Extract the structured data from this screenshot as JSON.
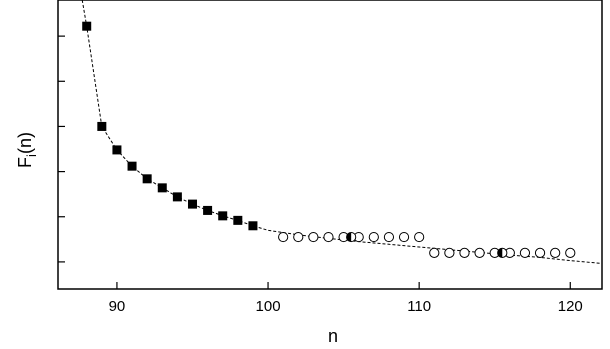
{
  "chart_data": {
    "type": "scatter",
    "title": "",
    "xlabel": "n",
    "ylabel_main": "F",
    "ylabel_sub": "i",
    "ylabel_suffix": "(n)",
    "xlim": [
      86.1,
      122.1
    ],
    "ylim": [
      0,
      6.4
    ],
    "xticks": [
      90,
      100,
      110,
      120
    ],
    "xtick_labels": [
      "90",
      "100",
      "110",
      "120"
    ],
    "yticks": [
      0.6,
      1.6,
      2.6,
      3.6,
      4.6,
      5.6
    ],
    "ytick_labels": [
      "",
      "",
      "",
      "",
      "",
      ""
    ],
    "grid": false,
    "series": [
      {
        "marker": "filled-square",
        "x": [
          88,
          89,
          90,
          91,
          92,
          93,
          94,
          95,
          96,
          97,
          98,
          99
        ],
        "y": [
          5.82,
          3.6,
          3.08,
          2.72,
          2.44,
          2.24,
          2.04,
          1.88,
          1.74,
          1.62,
          1.52,
          1.4
        ]
      },
      {
        "marker": "open-circle",
        "x": [
          101,
          102,
          103,
          104,
          105,
          106,
          107,
          108,
          109,
          110
        ],
        "y": [
          1.15,
          1.15,
          1.15,
          1.15,
          1.15,
          1.15,
          1.15,
          1.15,
          1.15,
          1.15
        ]
      },
      {
        "marker": "open-circle",
        "x": [
          111,
          112,
          113,
          114,
          115,
          116,
          117,
          118,
          119,
          120
        ],
        "y": [
          0.8,
          0.8,
          0.8,
          0.8,
          0.8,
          0.8,
          0.8,
          0.8,
          0.8,
          0.8
        ]
      },
      {
        "marker": "half-filled-circle",
        "x": [
          105.5,
          115.5
        ],
        "y": [
          1.15,
          0.8
        ]
      }
    ],
    "fit_curve": {
      "style": "dashed",
      "x": [
        88,
        89,
        90,
        91,
        92,
        93,
        94,
        95,
        96,
        97,
        98,
        99,
        100,
        102,
        104,
        106,
        108,
        110,
        112,
        114,
        116,
        118,
        120,
        122
      ],
      "y": [
        5.82,
        3.6,
        3.08,
        2.72,
        2.44,
        2.24,
        2.04,
        1.88,
        1.74,
        1.62,
        1.52,
        1.4,
        1.3,
        1.2,
        1.12,
        1.05,
        0.99,
        0.93,
        0.87,
        0.81,
        0.75,
        0.7,
        0.63,
        0.57
      ]
    },
    "colors": {
      "marker": "#000000",
      "open_marker_fill": "#ffffff",
      "line": "#000000"
    }
  }
}
